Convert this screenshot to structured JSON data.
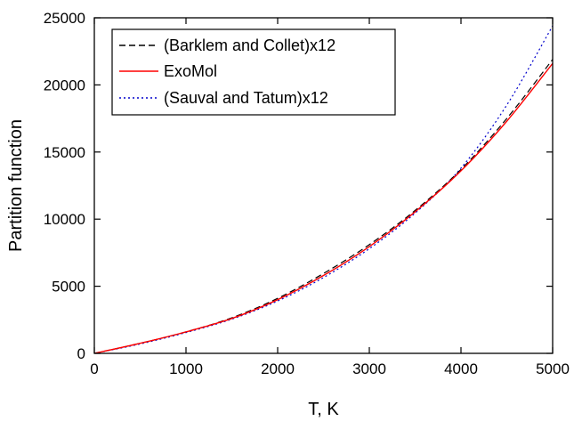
{
  "chart_data": {
    "type": "line",
    "title": "",
    "xlabel": "T, K",
    "ylabel": "Partition function",
    "xlim": [
      0,
      5000
    ],
    "ylim": [
      0,
      25000
    ],
    "xticks": [
      0,
      1000,
      2000,
      3000,
      4000,
      5000
    ],
    "yticks": [
      0,
      5000,
      10000,
      15000,
      20000,
      25000
    ],
    "xtick_labels": [
      "0",
      "1000",
      "2000",
      "3000",
      "4000",
      "5000"
    ],
    "ytick_labels": [
      "0",
      "5000",
      "10000",
      "15000",
      "20000",
      "25000"
    ],
    "grid": false,
    "legend_position": "top-left",
    "series": [
      {
        "name": "(Barklem and Collet)x12",
        "color": "#000000",
        "style": "dashed",
        "x": [
          0,
          500,
          1000,
          1500,
          2000,
          2500,
          3000,
          3500,
          4000,
          4500,
          5000
        ],
        "y": [
          0,
          750,
          1600,
          2650,
          4100,
          5950,
          8100,
          10650,
          13700,
          17500,
          21900
        ]
      },
      {
        "name": "ExoMol",
        "color": "#ff0000",
        "style": "solid",
        "x": [
          0,
          500,
          1000,
          1500,
          2000,
          2500,
          3000,
          3500,
          4000,
          4500,
          5000
        ],
        "y": [
          0,
          750,
          1600,
          2600,
          4000,
          5800,
          7950,
          10550,
          13600,
          17300,
          21600
        ]
      },
      {
        "name": "(Sauval and Tatum)x12",
        "color": "#0000cc",
        "style": "dotted",
        "x": [
          0,
          500,
          1000,
          1500,
          2000,
          2500,
          3000,
          3500,
          4000,
          4500,
          5000
        ],
        "y": [
          0,
          700,
          1550,
          2550,
          3900,
          5650,
          7800,
          10450,
          13800,
          18500,
          24400
        ]
      }
    ]
  }
}
